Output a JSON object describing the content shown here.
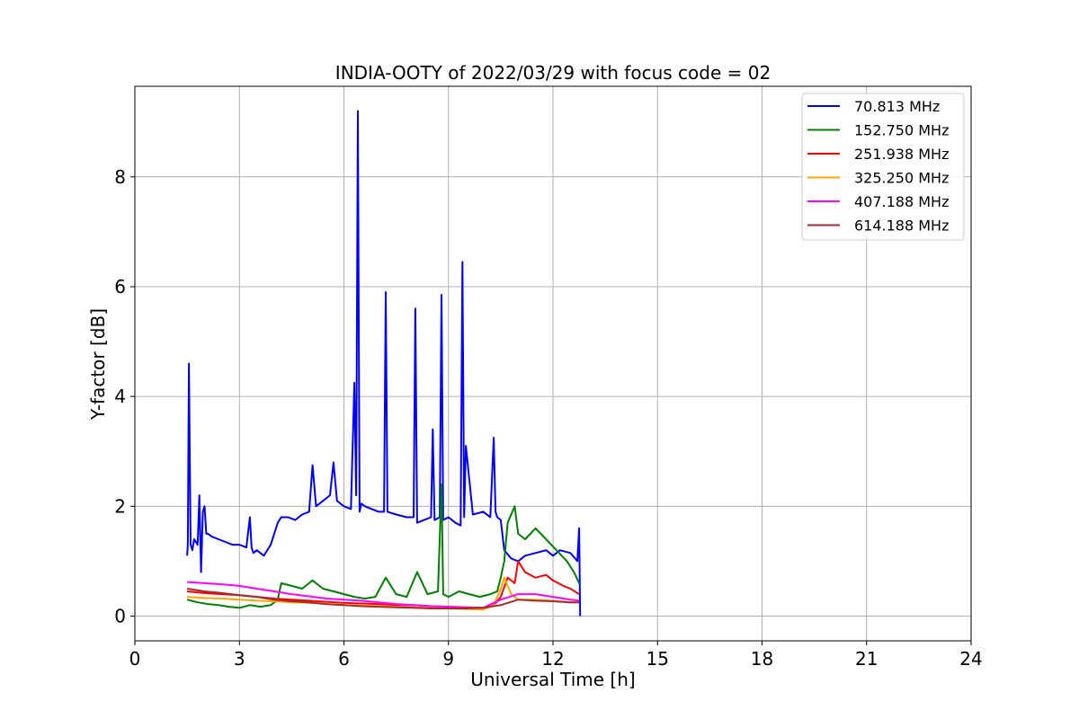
{
  "chart_data": {
    "type": "line",
    "title": "INDIA-OOTY of 2022/03/29 with focus code = 02",
    "xlabel": "Universal Time [h]",
    "ylabel": "Y-factor [dB]",
    "xlim": [
      0,
      24
    ],
    "ylim": [
      -0.45,
      9.65
    ],
    "xticks": [
      0,
      3,
      6,
      9,
      12,
      15,
      18,
      21,
      24
    ],
    "xtick_labels": [
      "0",
      "3",
      "6",
      "9",
      "12",
      "15",
      "18",
      "21",
      "24"
    ],
    "yticks": [
      0,
      2,
      4,
      6,
      8
    ],
    "ytick_labels": [
      "0",
      "2",
      "4",
      "6",
      "8"
    ],
    "grid": true,
    "legend_position": "top-right",
    "series": [
      {
        "name": " 70.813 MHz",
        "color": "#0000ff",
        "x": [
          1.5,
          1.52,
          1.55,
          1.6,
          1.65,
          1.7,
          1.8,
          1.85,
          1.9,
          1.95,
          2.0,
          2.05,
          2.1,
          2.2,
          2.4,
          2.6,
          2.8,
          3.0,
          3.2,
          3.3,
          3.35,
          3.4,
          3.5,
          3.7,
          3.9,
          4.1,
          4.2,
          4.4,
          4.6,
          4.8,
          5.0,
          5.1,
          5.2,
          5.4,
          5.6,
          5.7,
          5.8,
          6.0,
          6.2,
          6.3,
          6.35,
          6.4,
          6.45,
          6.5,
          6.6,
          6.8,
          7.0,
          7.15,
          7.2,
          7.25,
          7.5,
          7.8,
          8.0,
          8.05,
          8.1,
          8.3,
          8.5,
          8.55,
          8.6,
          8.75,
          8.8,
          8.85,
          9.0,
          9.2,
          9.35,
          9.4,
          9.45,
          9.5,
          9.7,
          10.0,
          10.2,
          10.3,
          10.35,
          10.4,
          10.5,
          10.6,
          10.8,
          11.0,
          11.2,
          11.5,
          11.8,
          12.0,
          12.2,
          12.5,
          12.7,
          12.75,
          12.78
        ],
        "y": [
          1.1,
          1.3,
          4.6,
          1.3,
          1.2,
          1.4,
          1.3,
          2.2,
          0.8,
          1.9,
          2.0,
          1.5,
          1.5,
          1.45,
          1.4,
          1.35,
          1.3,
          1.3,
          1.25,
          1.8,
          1.25,
          1.15,
          1.2,
          1.1,
          1.3,
          1.7,
          1.8,
          1.8,
          1.75,
          1.85,
          1.9,
          2.75,
          2.0,
          2.1,
          2.2,
          2.8,
          2.1,
          2.0,
          1.95,
          4.25,
          2.2,
          9.2,
          1.9,
          2.05,
          2.0,
          1.95,
          1.9,
          1.9,
          5.9,
          1.9,
          1.85,
          1.8,
          1.8,
          5.6,
          1.7,
          1.75,
          1.8,
          3.4,
          1.75,
          1.8,
          5.85,
          1.75,
          1.8,
          1.7,
          1.65,
          6.45,
          1.8,
          3.1,
          1.85,
          1.9,
          1.8,
          3.25,
          1.9,
          1.8,
          1.75,
          1.2,
          1.05,
          1.0,
          1.1,
          1.15,
          1.2,
          1.1,
          1.2,
          1.15,
          1.0,
          1.6,
          0.0
        ]
      },
      {
        "name": "152.750 MHz",
        "color": "#008000",
        "x": [
          1.5,
          1.8,
          2.1,
          2.4,
          2.7,
          3.0,
          3.3,
          3.6,
          3.9,
          4.1,
          4.2,
          4.5,
          4.8,
          5.1,
          5.4,
          5.7,
          6.0,
          6.3,
          6.6,
          6.9,
          7.2,
          7.5,
          7.8,
          8.1,
          8.4,
          8.7,
          8.8,
          8.85,
          9.0,
          9.3,
          9.6,
          9.9,
          10.2,
          10.4,
          10.5,
          10.6,
          10.7,
          10.9,
          11.0,
          11.2,
          11.5,
          11.8,
          12.1,
          12.4,
          12.6,
          12.75
        ],
        "y": [
          0.3,
          0.25,
          0.22,
          0.2,
          0.17,
          0.15,
          0.2,
          0.17,
          0.2,
          0.3,
          0.6,
          0.55,
          0.5,
          0.65,
          0.5,
          0.45,
          0.4,
          0.35,
          0.32,
          0.35,
          0.7,
          0.4,
          0.35,
          0.8,
          0.4,
          0.45,
          2.4,
          0.4,
          0.35,
          0.45,
          0.4,
          0.35,
          0.4,
          0.45,
          0.7,
          1.0,
          1.7,
          2.0,
          1.5,
          1.4,
          1.6,
          1.4,
          1.2,
          1.0,
          0.8,
          0.6
        ]
      },
      {
        "name": "251.938 MHz",
        "color": "#ff0000",
        "x": [
          1.5,
          2.0,
          2.5,
          3.0,
          3.5,
          4.0,
          4.5,
          5.0,
          5.5,
          6.0,
          6.5,
          7.0,
          7.5,
          8.0,
          8.5,
          9.0,
          9.5,
          10.0,
          10.3,
          10.5,
          10.7,
          10.9,
          11.0,
          11.2,
          11.5,
          11.8,
          12.0,
          12.3,
          12.5,
          12.75
        ],
        "y": [
          0.45,
          0.42,
          0.4,
          0.38,
          0.35,
          0.32,
          0.3,
          0.28,
          0.26,
          0.24,
          0.23,
          0.22,
          0.2,
          0.2,
          0.18,
          0.17,
          0.16,
          0.15,
          0.2,
          0.35,
          0.7,
          0.6,
          1.0,
          0.8,
          0.7,
          0.75,
          0.65,
          0.55,
          0.5,
          0.4
        ]
      },
      {
        "name": "325.250 MHz",
        "color": "#ffa500",
        "x": [
          1.5,
          2.0,
          2.5,
          3.0,
          3.5,
          4.0,
          4.5,
          5.0,
          5.5,
          6.0,
          6.5,
          7.0,
          7.5,
          8.0,
          8.5,
          9.0,
          9.5,
          10.0,
          10.3,
          10.5,
          10.6,
          10.8,
          11.0,
          11.5,
          12.0,
          12.5,
          12.75
        ],
        "y": [
          0.35,
          0.33,
          0.32,
          0.3,
          0.28,
          0.27,
          0.25,
          0.24,
          0.22,
          0.2,
          0.19,
          0.18,
          0.17,
          0.16,
          0.15,
          0.14,
          0.13,
          0.12,
          0.2,
          0.5,
          0.7,
          0.4,
          0.3,
          0.3,
          0.28,
          0.25,
          0.25
        ]
      },
      {
        "name": "407.188 MHz",
        "color": "#ff00ff",
        "x": [
          1.5,
          2.0,
          2.5,
          3.0,
          3.5,
          4.0,
          4.5,
          5.0,
          5.5,
          6.0,
          6.5,
          7.0,
          7.5,
          8.0,
          8.5,
          9.0,
          9.5,
          10.0,
          10.5,
          11.0,
          11.5,
          12.0,
          12.5,
          12.75
        ],
        "y": [
          0.62,
          0.6,
          0.58,
          0.55,
          0.5,
          0.45,
          0.4,
          0.36,
          0.32,
          0.3,
          0.28,
          0.25,
          0.22,
          0.2,
          0.18,
          0.17,
          0.15,
          0.15,
          0.3,
          0.4,
          0.4,
          0.35,
          0.3,
          0.28
        ]
      },
      {
        "name": "614.188 MHz",
        "color": "#a52a2a",
        "x": [
          1.5,
          2.0,
          2.5,
          3.0,
          3.5,
          4.0,
          4.5,
          5.0,
          5.5,
          6.0,
          6.5,
          7.0,
          7.5,
          8.0,
          8.5,
          9.0,
          9.5,
          10.0,
          10.5,
          11.0,
          11.5,
          12.0,
          12.5,
          12.75
        ],
        "y": [
          0.5,
          0.45,
          0.42,
          0.38,
          0.35,
          0.3,
          0.27,
          0.25,
          0.22,
          0.2,
          0.18,
          0.17,
          0.16,
          0.15,
          0.14,
          0.14,
          0.14,
          0.15,
          0.2,
          0.3,
          0.28,
          0.27,
          0.25,
          0.25
        ]
      }
    ]
  }
}
